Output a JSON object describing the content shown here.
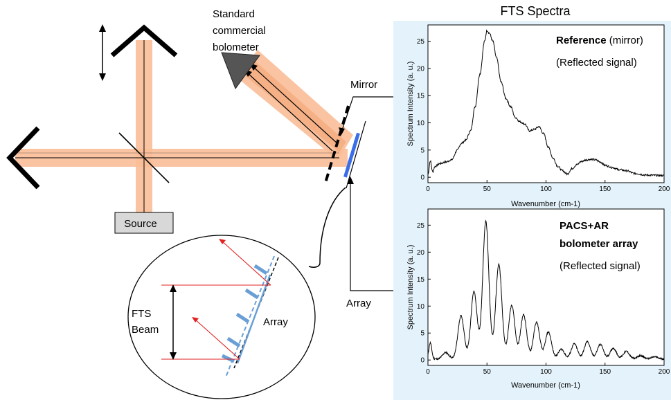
{
  "colors": {
    "beam": "#f9be98",
    "beam_core": "#f0a070",
    "panel_bg": "#e4f3fb",
    "source_box": "#d8d8d8",
    "detector": "#555555",
    "array_blue": "#3a6ee8",
    "ray_red": "#e22222",
    "array_line_blue": "#6a9fd6"
  },
  "diagram": {
    "title": "FTS Spectra",
    "bolometer_label": [
      "Standard",
      "commercial",
      "bolometer"
    ],
    "mirror_label": "Mirror",
    "array_label": "Array",
    "source_label": "Source",
    "inset_beam_label": [
      "FTS",
      "Beam"
    ],
    "inset_array_label": "Array"
  },
  "charts": [
    {
      "ylabel": "Spectrum Intensity (a. u.)",
      "xlabel": "Wavenumber (cm-1)",
      "annotation_bold": "Reference",
      "annotation_rest": " (mirror)",
      "annotation2": "(Reflected signal)"
    },
    {
      "ylabel": "Spectrum Intensity (a. u.)",
      "xlabel": "Wavenumber (cm-1)",
      "annotation_bold": "PACS+AR",
      "annotation_bold2": "bolometer array",
      "annotation2": "(Reflected signal)"
    }
  ],
  "chart_data": [
    {
      "type": "line",
      "xlim": [
        0,
        200
      ],
      "ylim": [
        -1,
        28
      ],
      "xticks": [
        "0",
        "50",
        "100",
        "150",
        "200"
      ],
      "yticks": [
        "0",
        "5",
        "10",
        "15",
        "20",
        "25"
      ],
      "x": [
        0,
        2,
        4,
        6,
        10,
        15,
        20,
        25,
        28,
        32,
        36,
        40,
        44,
        48,
        50,
        52,
        55,
        58,
        62,
        66,
        70,
        74,
        78,
        82,
        86,
        90,
        94,
        98,
        102,
        106,
        110,
        114,
        118,
        122,
        126,
        130,
        134,
        138,
        142,
        146,
        150,
        156,
        162,
        168,
        175,
        185,
        200
      ],
      "y": [
        0.5,
        3,
        1,
        2,
        2.5,
        2.8,
        3.2,
        5,
        6.2,
        6.8,
        8.5,
        13,
        19,
        25,
        27,
        26.5,
        25,
        22,
        17.5,
        14.5,
        13,
        11,
        10.2,
        9.8,
        8.5,
        8.8,
        9.3,
        8,
        5.5,
        3.5,
        2,
        1.2,
        0.6,
        1.6,
        2.3,
        2.9,
        3.2,
        3.3,
        3.2,
        2.8,
        2.2,
        1.8,
        1.4,
        1.2,
        0.7,
        0.4,
        0.3
      ]
    },
    {
      "type": "line",
      "xlim": [
        0,
        200
      ],
      "ylim": [
        -1,
        28
      ],
      "xticks": [
        "0",
        "50",
        "100",
        "150",
        "200"
      ],
      "yticks": [
        "0",
        "5",
        "10",
        "15",
        "20",
        "25"
      ],
      "peaks": [
        [
          2,
          3
        ],
        [
          15,
          1.2
        ],
        [
          28,
          8
        ],
        [
          39,
          12.5
        ],
        [
          49,
          25.5
        ],
        [
          60,
          17.5
        ],
        [
          71,
          10
        ],
        [
          81,
          8.2
        ],
        [
          92,
          6.8
        ],
        [
          102,
          5
        ],
        [
          113,
          1.8
        ],
        [
          124,
          2.8
        ],
        [
          135,
          3.2
        ],
        [
          146,
          2.7
        ],
        [
          157,
          2.0
        ],
        [
          168,
          1.4
        ],
        [
          180,
          0.6
        ],
        [
          192,
          0.4
        ]
      ]
    }
  ]
}
